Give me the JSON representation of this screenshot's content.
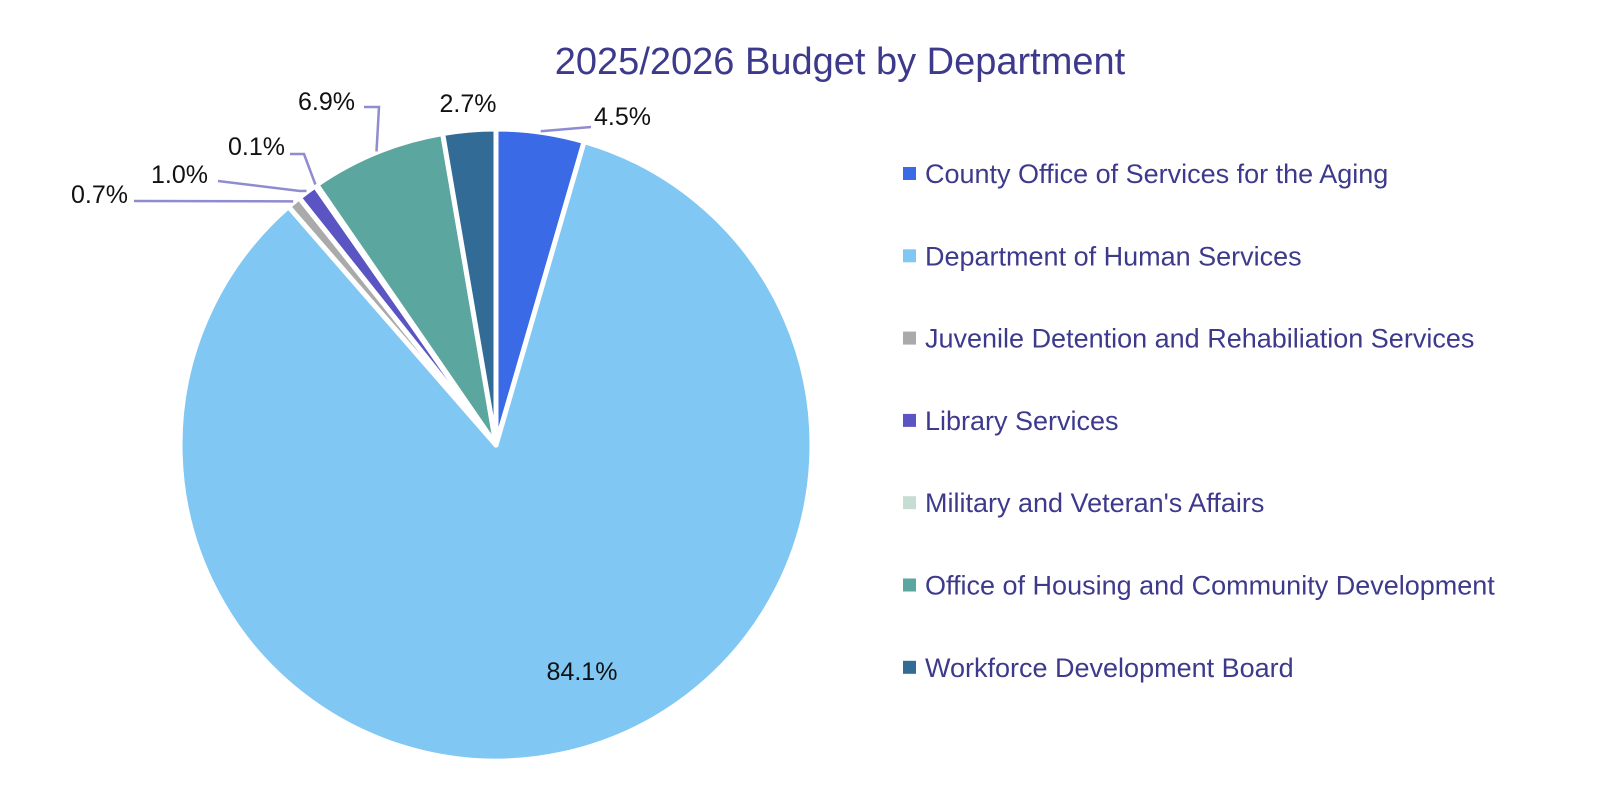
{
  "chart_data": {
    "type": "pie",
    "title": "2025/2026 Budget by Department",
    "start_angle_deg": 0,
    "direction": "clockwise",
    "legend_position": "right",
    "slices": [
      {
        "label": "County Office of Services for the Aging",
        "value": 4.5,
        "display": "4.5%",
        "color": "#3b6ae6"
      },
      {
        "label": "Department of Human Services",
        "value": 84.1,
        "display": "84.1%",
        "color": "#80c7f4"
      },
      {
        "label": "Juvenile Detention and Rehabiliation Services",
        "value": 0.7,
        "display": "0.7%",
        "color": "#aaaaaa"
      },
      {
        "label": "Library Services",
        "value": 1.0,
        "display": "1.0%",
        "color": "#5b55c3"
      },
      {
        "label": "Military and Veteran's Affairs",
        "value": 0.1,
        "display": "0.1%",
        "color": "#c6ddd4"
      },
      {
        "label": "Office of Housing and Community Development",
        "value": 6.9,
        "display": "6.9%",
        "color": "#5ba69f"
      },
      {
        "label": "Workforce Development Board",
        "value": 2.7,
        "display": "2.7%",
        "color": "#336b97"
      }
    ]
  }
}
